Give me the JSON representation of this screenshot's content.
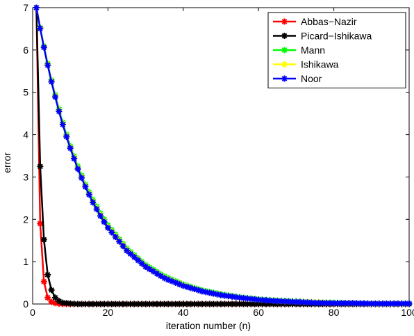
{
  "chart_data": {
    "type": "line",
    "xlabel": "iteration number (n)",
    "ylabel": "error",
    "xlim": [
      0,
      100
    ],
    "ylim": [
      0,
      7
    ],
    "xticks": [
      "0",
      "20",
      "40",
      "60",
      "80",
      "100"
    ],
    "yticks": [
      "0",
      "1",
      "2",
      "3",
      "4",
      "5",
      "6",
      "7"
    ],
    "grid": false,
    "legend_position": "top-right",
    "marker": "asterisk",
    "series": [
      {
        "name": "Abbas−Nazir",
        "color": "#ff0000",
        "x": [
          1,
          2,
          3,
          4,
          5,
          6,
          7,
          8,
          9,
          10,
          12,
          15,
          20,
          30,
          40,
          50,
          60,
          70,
          80,
          90,
          100
        ],
        "y": [
          7,
          1.9,
          0.53,
          0.15,
          0.05,
          0.02,
          0.01,
          0,
          0,
          0,
          0,
          0,
          0,
          0,
          0,
          0,
          0,
          0,
          0,
          0,
          0
        ]
      },
      {
        "name": "Picard−Ishikawa",
        "color": "#000000",
        "x": [
          1,
          2,
          3,
          4,
          5,
          6,
          7,
          8,
          9,
          10,
          12,
          15,
          20,
          30,
          40,
          50,
          60,
          70,
          80,
          90,
          100
        ],
        "y": [
          7,
          3.25,
          1.52,
          0.69,
          0.33,
          0.15,
          0.07,
          0.03,
          0.02,
          0.01,
          0,
          0,
          0,
          0,
          0,
          0,
          0,
          0,
          0,
          0,
          0
        ]
      },
      {
        "name": "Mann",
        "color": "#00ff00",
        "x": [
          1,
          2,
          3,
          4,
          5,
          6,
          7,
          8,
          9,
          10,
          12,
          14,
          16,
          18,
          20,
          25,
          30,
          35,
          40,
          45,
          50,
          55,
          60,
          65,
          70,
          75,
          80,
          85,
          90,
          95,
          100
        ],
        "y": [
          7,
          6.53,
          6.09,
          5.68,
          5.29,
          4.94,
          4.6,
          4.29,
          4.0,
          3.73,
          3.25,
          2.82,
          2.46,
          2.14,
          1.86,
          1.31,
          0.92,
          0.65,
          0.46,
          0.32,
          0.23,
          0.16,
          0.11,
          0.08,
          0.06,
          0.04,
          0.03,
          0.02,
          0.01,
          0.01,
          0.01
        ]
      },
      {
        "name": "Ishikawa",
        "color": "#ffff00",
        "x": [
          1,
          2,
          3,
          4,
          5,
          6,
          7,
          8,
          9,
          10,
          12,
          14,
          16,
          18,
          20,
          25,
          30,
          35,
          40,
          45,
          50,
          55,
          60,
          65,
          70,
          75,
          80,
          85,
          90,
          95,
          100
        ],
        "y": [
          7,
          6.52,
          6.07,
          5.66,
          5.27,
          4.91,
          4.57,
          4.26,
          3.97,
          3.7,
          3.21,
          2.79,
          2.42,
          2.1,
          1.82,
          1.28,
          0.89,
          0.62,
          0.44,
          0.3,
          0.21,
          0.15,
          0.1,
          0.07,
          0.05,
          0.04,
          0.02,
          0.02,
          0.01,
          0.01,
          0.01
        ]
      },
      {
        "name": "Noor",
        "color": "#0000ff",
        "x": [
          1,
          2,
          3,
          4,
          5,
          6,
          7,
          8,
          9,
          10,
          12,
          14,
          16,
          18,
          20,
          25,
          30,
          35,
          40,
          45,
          50,
          55,
          60,
          65,
          70,
          75,
          80,
          85,
          90,
          95,
          100
        ],
        "y": [
          7,
          6.51,
          6.06,
          5.64,
          5.25,
          4.89,
          4.55,
          4.24,
          3.95,
          3.68,
          3.19,
          2.77,
          2.4,
          2.08,
          1.8,
          1.26,
          0.88,
          0.61,
          0.43,
          0.3,
          0.21,
          0.15,
          0.1,
          0.07,
          0.05,
          0.03,
          0.02,
          0.02,
          0.01,
          0.01,
          0.01
        ]
      }
    ]
  }
}
